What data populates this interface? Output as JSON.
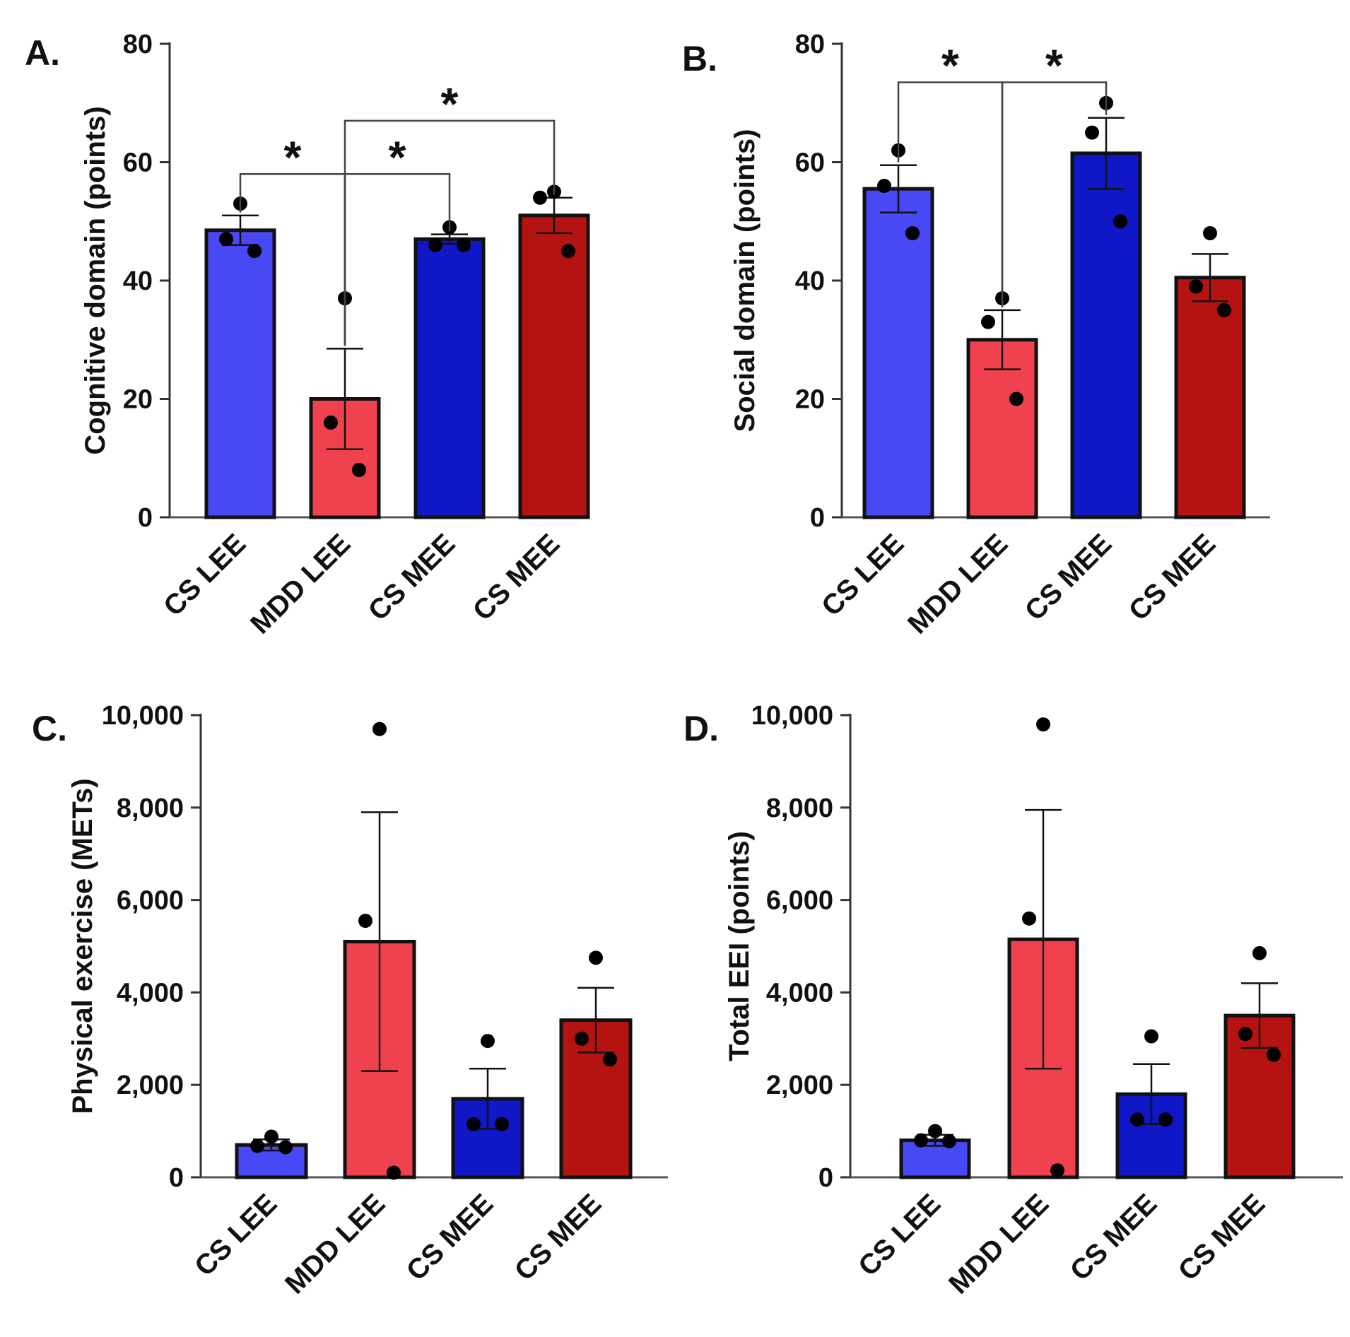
{
  "colors": {
    "cs_lee": "#4848F4",
    "mdd_lee": "#F0424E",
    "cs_mee_blue": "#0F17C7",
    "cs_mee_red": "#B51212",
    "stroke": "#111111"
  },
  "chart_data": [
    {
      "panel": "A.",
      "type": "bar",
      "ylabel": "Cognitive domain (points)",
      "ylim": [
        0,
        80
      ],
      "yticks": [
        0,
        20,
        40,
        60,
        80
      ],
      "ytick_labels": [
        "0",
        "20",
        "40",
        "60",
        "80"
      ],
      "categories": [
        "CS LEE",
        "MDD LEE",
        "CS MEE",
        "CS MEE"
      ],
      "values": [
        48.5,
        20,
        47,
        51
      ],
      "error": [
        2.5,
        8.5,
        0.8,
        3
      ],
      "points": [
        [
          53,
          47,
          45
        ],
        [
          37,
          16,
          8
        ],
        [
          49,
          46,
          46
        ],
        [
          55,
          54,
          45
        ]
      ],
      "bar_colors": [
        "cs_lee",
        "mdd_lee",
        "cs_mee_blue",
        "cs_mee_red"
      ],
      "significance": [
        {
          "from": 0,
          "to": 1,
          "y": 58,
          "label": "*"
        },
        {
          "from": 1,
          "to": 2,
          "y": 58,
          "label": "*"
        },
        {
          "from": 1,
          "to": 3,
          "y": 67,
          "label": "*"
        }
      ]
    },
    {
      "panel": "B.",
      "type": "bar",
      "ylabel": "Social domain (points)",
      "ylim": [
        0,
        80
      ],
      "yticks": [
        0,
        20,
        40,
        60,
        80
      ],
      "ytick_labels": [
        "0",
        "20",
        "40",
        "60",
        "80"
      ],
      "categories": [
        "CS LEE",
        "MDD LEE",
        "CS MEE",
        "CS MEE"
      ],
      "values": [
        55.5,
        30,
        61.5,
        40.5
      ],
      "error": [
        4,
        5,
        6,
        4
      ],
      "points": [
        [
          62,
          56,
          48
        ],
        [
          37,
          33,
          20
        ],
        [
          70,
          65,
          50
        ],
        [
          48,
          39,
          35
        ]
      ],
      "bar_colors": [
        "cs_lee",
        "mdd_lee",
        "cs_mee_blue",
        "cs_mee_red"
      ],
      "significance": [
        {
          "from": 0,
          "to": 1,
          "y": 73.5,
          "label": "*"
        },
        {
          "from": 1,
          "to": 2,
          "y": 73.5,
          "label": "*"
        }
      ]
    },
    {
      "panel": "C.",
      "type": "bar",
      "ylabel": "Physical exercise (METs)",
      "ylim": [
        0,
        10000
      ],
      "yticks": [
        0,
        2000,
        4000,
        6000,
        8000,
        10000
      ],
      "ytick_labels": [
        "0",
        "2,000",
        "4,000",
        "6,000",
        "8,000",
        "10,000"
      ],
      "categories": [
        "CS LEE",
        "MDD LEE",
        "CS MEE",
        "CS MEE"
      ],
      "values": [
        700,
        5100,
        1700,
        3400
      ],
      "error": [
        120,
        2800,
        650,
        700
      ],
      "points": [
        [
          880,
          680,
          650
        ],
        [
          9700,
          5550,
          100
        ],
        [
          2950,
          1150,
          1150
        ],
        [
          4750,
          3000,
          2550
        ]
      ],
      "bar_colors": [
        "cs_lee",
        "mdd_lee",
        "cs_mee_blue",
        "cs_mee_red"
      ],
      "significance": []
    },
    {
      "panel": "D.",
      "type": "bar",
      "ylabel": "Total EEI (points)",
      "ylim": [
        0,
        10000
      ],
      "yticks": [
        0,
        2000,
        4000,
        6000,
        8000,
        10000
      ],
      "ytick_labels": [
        "0",
        "2,000",
        "4,000",
        "6,000",
        "8,000",
        "10,000"
      ],
      "categories": [
        "CS LEE",
        "MDD LEE",
        "CS MEE",
        "CS MEE"
      ],
      "values": [
        800,
        5150,
        1800,
        3500
      ],
      "error": [
        120,
        2800,
        650,
        700
      ],
      "points": [
        [
          1000,
          800,
          780
        ],
        [
          9800,
          5600,
          150
        ],
        [
          3050,
          1250,
          1250
        ],
        [
          4850,
          3100,
          2650
        ]
      ],
      "bar_colors": [
        "cs_lee",
        "mdd_lee",
        "cs_mee_blue",
        "cs_mee_red"
      ],
      "significance": []
    }
  ]
}
